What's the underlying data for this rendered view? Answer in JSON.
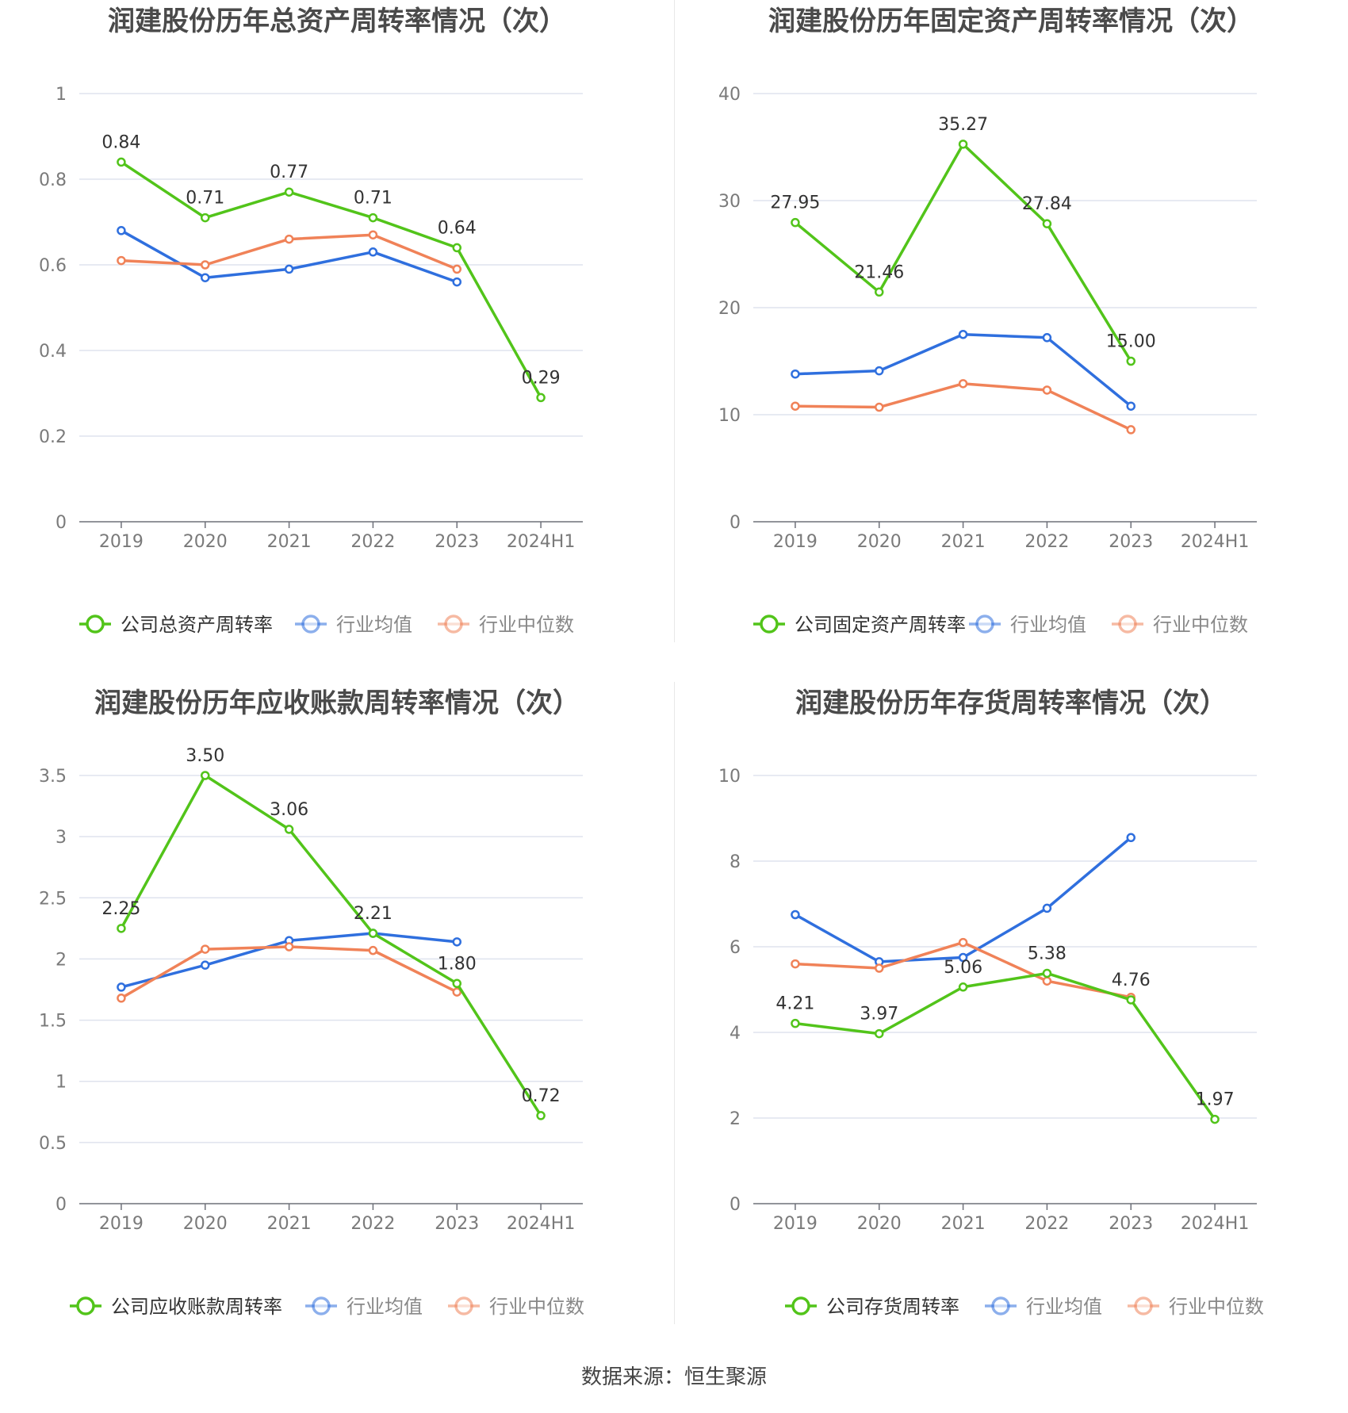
{
  "source_text": "数据来源：恒生聚源",
  "colors": {
    "company": "#52c41a",
    "avg": "#2f6fde",
    "median": "#f08258"
  },
  "chart_data": [
    {
      "type": "line",
      "title": "润建股份历年总资产周转率情况（次）",
      "categories": [
        "2019",
        "2020",
        "2021",
        "2022",
        "2023",
        "2024H1"
      ],
      "ylim": [
        0,
        1
      ],
      "yticks": [
        0,
        0.2,
        0.4,
        0.6,
        0.8,
        1
      ],
      "ytick_labels": [
        "0",
        "0.2",
        "0.4",
        "0.6",
        "0.8",
        "1"
      ],
      "series": [
        {
          "name": "公司总资产周转率",
          "values": [
            0.84,
            0.71,
            0.77,
            0.71,
            0.64,
            0.29
          ],
          "labels": [
            "0.84",
            "0.71",
            "0.77",
            "0.71",
            "0.64",
            "0.29"
          ]
        },
        {
          "name": "行业均值",
          "values": [
            0.68,
            0.57,
            0.59,
            0.63,
            0.56,
            null
          ]
        },
        {
          "name": "行业中位数",
          "values": [
            0.61,
            0.6,
            0.66,
            0.67,
            0.59,
            null
          ]
        }
      ],
      "legend": "bottom"
    },
    {
      "type": "line",
      "title": "润建股份历年固定资产周转率情况（次）",
      "categories": [
        "2019",
        "2020",
        "2021",
        "2022",
        "2023",
        "2024H1"
      ],
      "ylim": [
        0,
        40
      ],
      "yticks": [
        0,
        10,
        20,
        30,
        40
      ],
      "ytick_labels": [
        "0",
        "10",
        "20",
        "30",
        "40"
      ],
      "series": [
        {
          "name": "公司固定资产周转率",
          "values": [
            27.95,
            21.46,
            35.27,
            27.84,
            15.0,
            null
          ],
          "labels": [
            "27.95",
            "21.46",
            "35.27",
            "27.84",
            "15.00",
            null
          ]
        },
        {
          "name": "行业均值",
          "values": [
            13.8,
            14.1,
            17.5,
            17.2,
            10.8,
            null
          ]
        },
        {
          "name": "行业中位数",
          "values": [
            10.8,
            10.7,
            12.9,
            12.3,
            8.6,
            null
          ]
        }
      ],
      "legend": "bottom"
    },
    {
      "type": "line",
      "title": "润建股份历年应收账款周转率情况（次）",
      "categories": [
        "2019",
        "2020",
        "2021",
        "2022",
        "2023",
        "2024H1"
      ],
      "ylim": [
        0,
        3.5
      ],
      "yticks": [
        0,
        0.5,
        1,
        1.5,
        2,
        2.5,
        3,
        3.5
      ],
      "ytick_labels": [
        "0",
        "0.5",
        "1",
        "1.5",
        "2",
        "2.5",
        "3",
        "3.5"
      ],
      "series": [
        {
          "name": "公司应收账款周转率",
          "values": [
            2.25,
            3.5,
            3.06,
            2.21,
            1.8,
            0.72
          ],
          "labels": [
            "2.25",
            "3.50",
            "3.06",
            "2.21",
            "1.80",
            "0.72"
          ]
        },
        {
          "name": "行业均值",
          "values": [
            1.77,
            1.95,
            2.15,
            2.21,
            2.14,
            null
          ]
        },
        {
          "name": "行业中位数",
          "values": [
            1.68,
            2.08,
            2.1,
            2.07,
            1.73,
            null
          ]
        }
      ],
      "legend": "bottom"
    },
    {
      "type": "line",
      "title": "润建股份历年存货周转率情况（次）",
      "categories": [
        "2019",
        "2020",
        "2021",
        "2022",
        "2023",
        "2024H1"
      ],
      "ylim": [
        0,
        10
      ],
      "yticks": [
        0,
        2,
        4,
        6,
        8,
        10
      ],
      "ytick_labels": [
        "0",
        "2",
        "4",
        "6",
        "8",
        "10"
      ],
      "series": [
        {
          "name": "公司存货周转率",
          "values": [
            4.21,
            3.97,
            5.06,
            5.38,
            4.76,
            1.97
          ],
          "labels": [
            "4.21",
            "3.97",
            "5.06",
            "5.38",
            "4.76",
            "1.97"
          ]
        },
        {
          "name": "行业均值",
          "values": [
            6.75,
            5.65,
            5.75,
            6.9,
            8.55,
            null
          ]
        },
        {
          "name": "行业中位数",
          "values": [
            5.6,
            5.5,
            6.1,
            5.2,
            4.82,
            null
          ]
        }
      ],
      "legend": "bottom"
    }
  ]
}
